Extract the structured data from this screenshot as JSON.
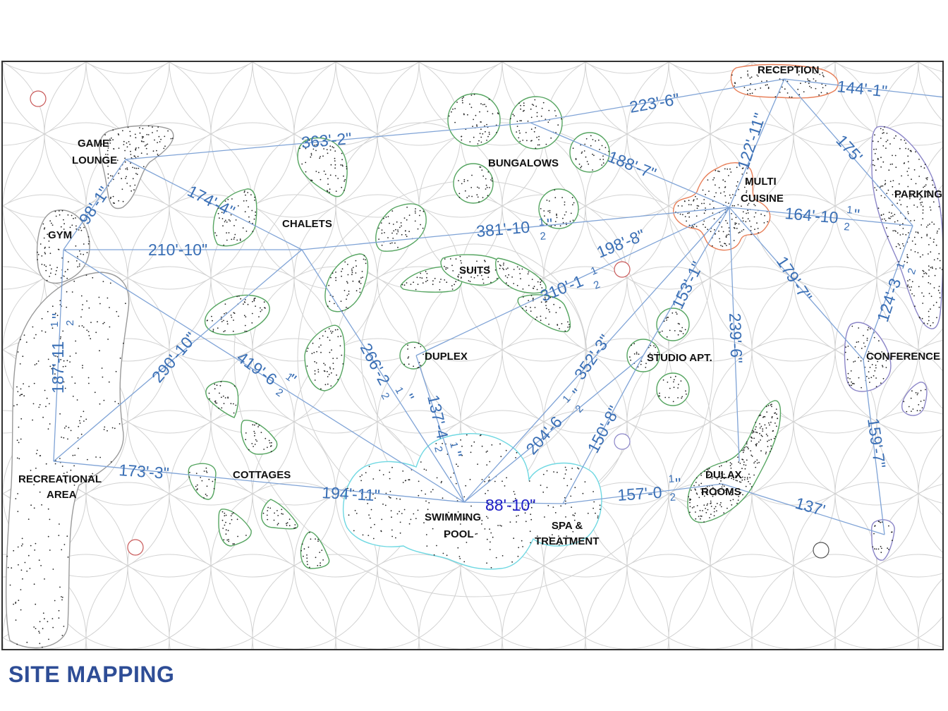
{
  "title": "SITE MAPPING",
  "colors": {
    "link": "#7fa3d6",
    "dimension_text": "#3a6fb5",
    "zone_green": "#56a561",
    "zone_orange": "#e8805a",
    "zone_cyan": "#6fd8e2",
    "zone_purple": "#8c86c8",
    "zone_gray": "#9a9a9a",
    "grid": "#cfcfcf",
    "title": "#2e4d96"
  },
  "zones": {
    "reception": "RECEPTION",
    "game_lounge_1": "GAME",
    "game_lounge_2": "LOUNGE",
    "gym": "GYM",
    "chalets": "CHALETS",
    "bungalows": "BUNGALOWS",
    "multi_cuisine_1": "MULTI",
    "multi_cuisine_2": "CUISINE",
    "parking": "PARKING",
    "suits": "SUITS",
    "duplex": "DUPLEX",
    "studio_apt": "STUDIO APT.",
    "conference": "CONFERENCE",
    "recreational_area_1": "RECREATIONAL",
    "recreational_area_2": "AREA",
    "cottages": "COTTAGES",
    "swimming_pool_1": "SWIMMING",
    "swimming_pool_2": "POOL",
    "spa_1": "SPA &",
    "spa_2": "TREATMENT",
    "dulax_rooms_1": "DULAX",
    "dulax_rooms_2": "ROOMS"
  },
  "dimensions": {
    "d_223_6": "223'-6\"",
    "d_144_1": "144'-1\"",
    "d_363_2": "363'-2\"",
    "d_122_11": "122'-11\"",
    "d_175": "175'",
    "d_188_7": "188'-7\"",
    "d_98_1": "98'-1\"",
    "d_174_4": "174'-4\"",
    "d_381_10": "381'-10",
    "d_164_10": "164'-10",
    "d_210_10": "210'-10\"",
    "d_198_8": "198'-8\"",
    "d_310_1": "310'-1",
    "d_179_7": "179'-7\"",
    "d_124_3": "124'-3",
    "d_153_1": "153'-1\"",
    "d_239_6": "239'-6\"",
    "d_187_11": "187'-11",
    "d_290_10": "290'-10\"",
    "d_419_6": "419'-6",
    "d_266_2": "266'-2",
    "d_352_3": "352'-3\"",
    "d_137_4": "137'-4",
    "d_204_6": "204'-6",
    "d_150_8": "150'-8\"",
    "d_159_7": "159'-7\"",
    "d_173_3": "173'-3\"",
    "d_194_11": "194'-11\"",
    "d_88_10": "88'-10\"",
    "d_157_0": "157'-0",
    "d_137": "137'"
  },
  "fractions": {
    "num": "1",
    "den": "2",
    "inch": "\""
  }
}
